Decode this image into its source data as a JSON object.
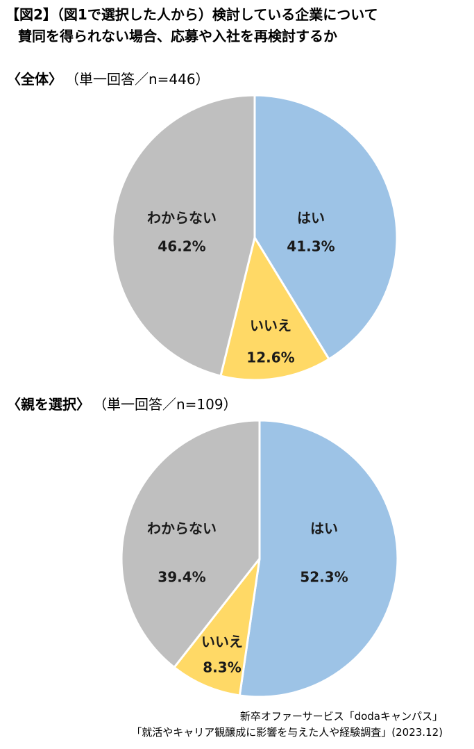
{
  "title": {
    "line1": "【図2】（図1で選択した人から）検討している企業について",
    "line2": "賛同を得られない場合、応募や入社を再検討するか"
  },
  "source": {
    "line1": "新卒オファーサービス「dodaキャンパス」",
    "line2": "「就活やキャリア観醸成に影響を与えた人や経験調査」(2023.12)"
  },
  "chart_data": [
    {
      "type": "pie",
      "title": "〈全体〉",
      "subtitle": "（単一回答／n=446）",
      "categories": [
        "はい",
        "いいえ",
        "わからない"
      ],
      "values": [
        41.3,
        12.6,
        46.2
      ],
      "value_labels": [
        "41.3%",
        "12.6%",
        "46.2%"
      ],
      "start": "12 o'clock",
      "direction": "clockwise",
      "colors": [
        "#9DC3E6",
        "#FFD966",
        "#BFBFBF"
      ],
      "legend": "none",
      "labels_position": "inside"
    },
    {
      "type": "pie",
      "title": "〈親を選択〉",
      "subtitle": "（単一回答／n=109）",
      "categories": [
        "はい",
        "いいえ",
        "わからない"
      ],
      "values": [
        52.3,
        8.3,
        39.4
      ],
      "value_labels": [
        "52.3%",
        "8.3%",
        "39.4%"
      ],
      "start": "12 o'clock",
      "direction": "clockwise",
      "colors": [
        "#9DC3E6",
        "#FFD966",
        "#BFBFBF"
      ],
      "legend": "none",
      "labels_position": "inside"
    }
  ]
}
